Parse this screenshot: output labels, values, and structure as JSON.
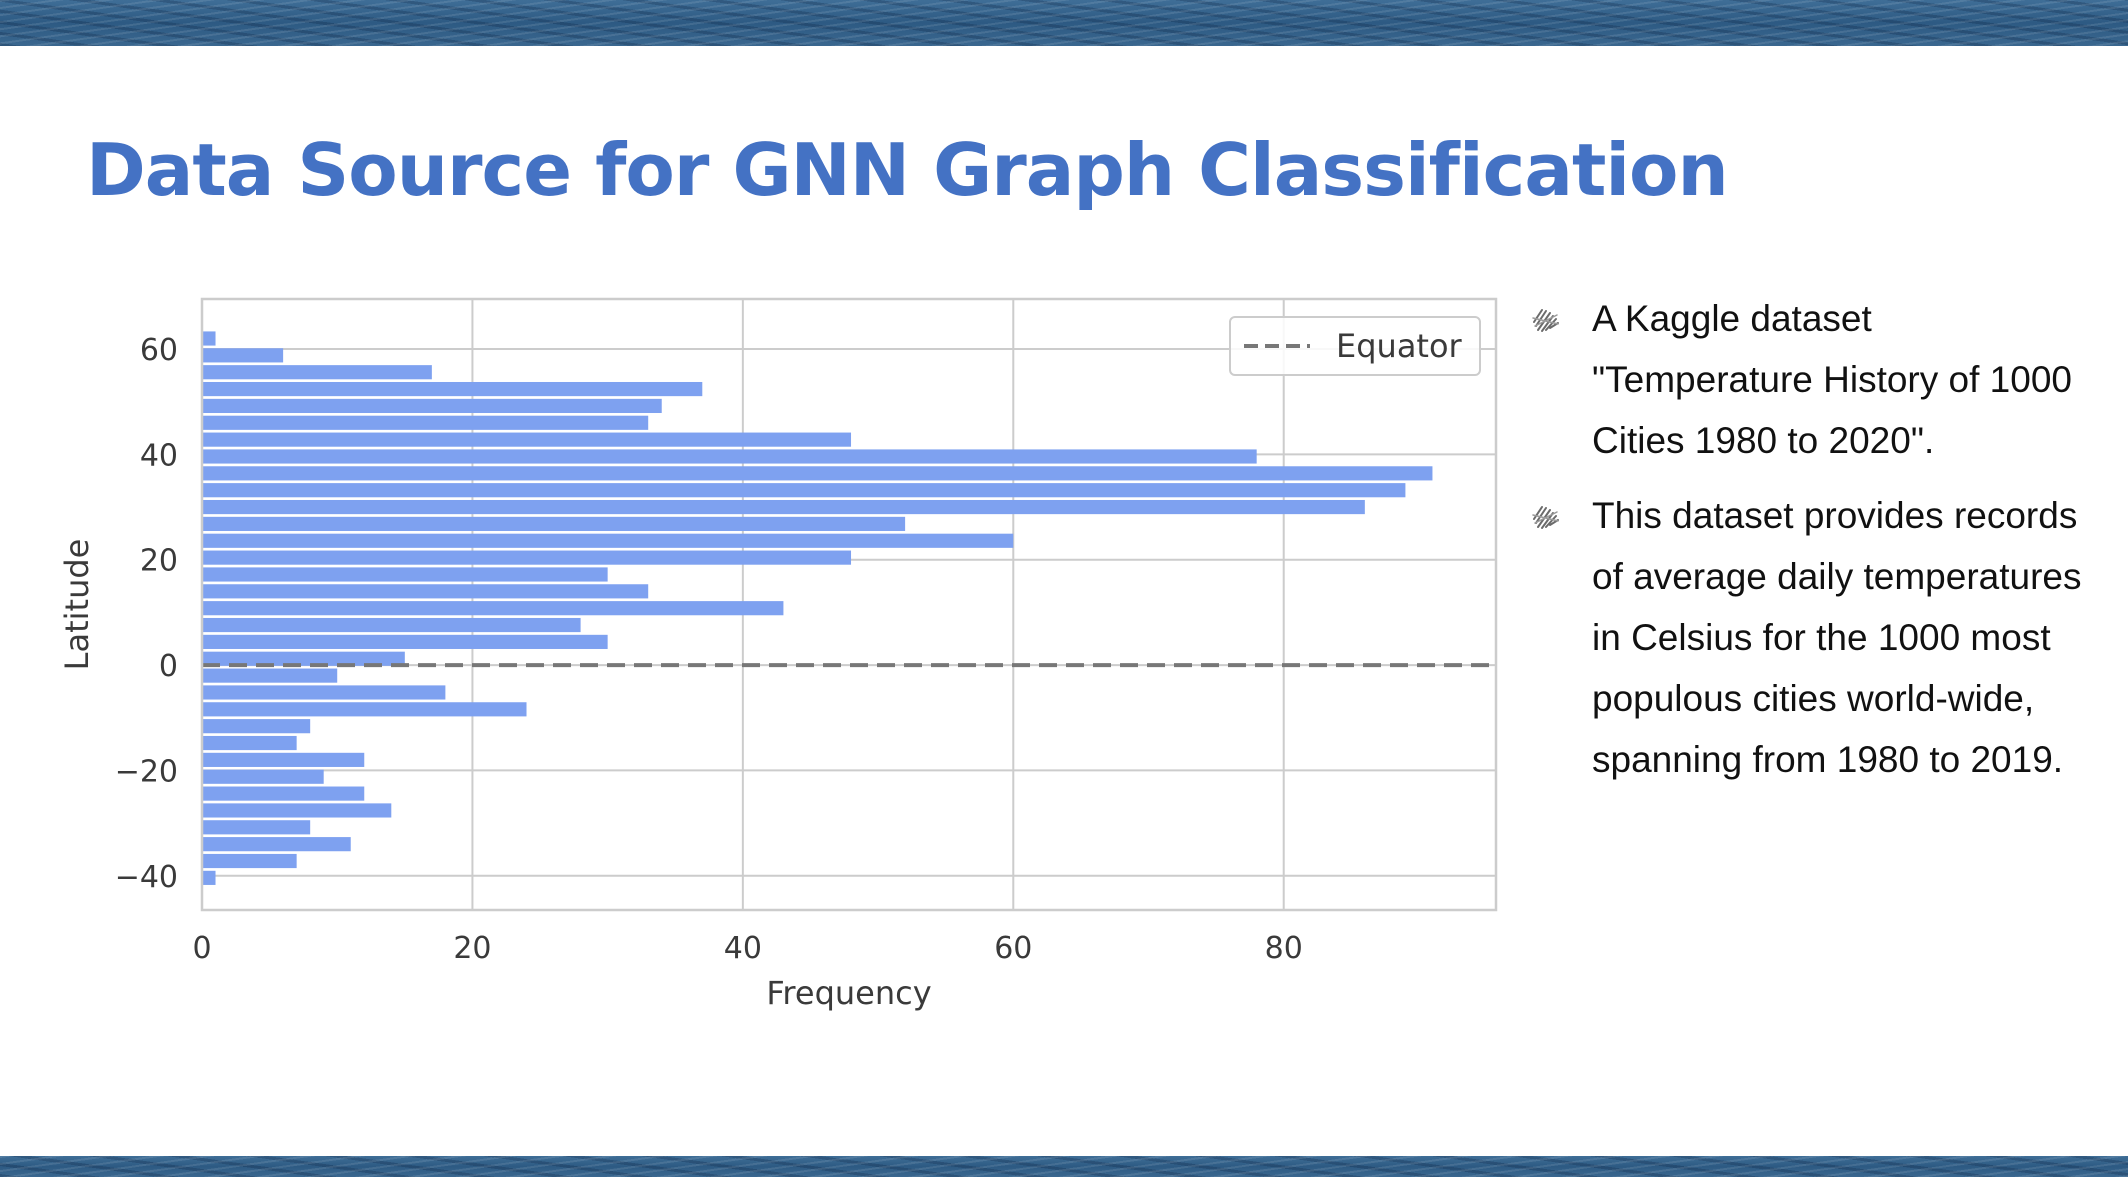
{
  "slide": {
    "title": "Data Source for GNN Graph Classification",
    "bullets": [
      "A Kaggle dataset \"Temperature History of 1000 Cities 1980 to 2020\".",
      "This dataset provides records of average daily temperatures in Celsius for the 1000 most populous cities world-wide, spanning from 1980 to 2019."
    ],
    "bullet_icon": "scribble-bullet-icon"
  },
  "colors": {
    "title": "#4472c4",
    "bars": "#7ea1f0",
    "equator_line": "#777777",
    "grid": "#cccccc"
  },
  "chart_data": {
    "type": "bar",
    "orientation": "horizontal",
    "xlabel": "Frequency",
    "ylabel": "Latitude",
    "xlim": [
      0,
      95.7
    ],
    "ylim": [
      -46.5,
      69.5
    ],
    "xticks": [
      0,
      20,
      40,
      60,
      80
    ],
    "yticks": [
      -40,
      -20,
      0,
      20,
      40,
      60
    ],
    "grid": true,
    "legend": {
      "entries": [
        "Equator"
      ],
      "placement": "top-right",
      "line_style": "dashed"
    },
    "reference_lines": [
      {
        "name": "Equator",
        "y": 0
      }
    ],
    "bin_width": 3.22,
    "bins": [
      {
        "latitude": -40.4,
        "frequency": 1
      },
      {
        "latitude": -37.2,
        "frequency": 7
      },
      {
        "latitude": -34.0,
        "frequency": 11
      },
      {
        "latitude": -30.8,
        "frequency": 8
      },
      {
        "latitude": -27.6,
        "frequency": 14
      },
      {
        "latitude": -24.4,
        "frequency": 12
      },
      {
        "latitude": -21.2,
        "frequency": 9
      },
      {
        "latitude": -18.0,
        "frequency": 12
      },
      {
        "latitude": -14.8,
        "frequency": 7
      },
      {
        "latitude": -11.6,
        "frequency": 8
      },
      {
        "latitude": -8.4,
        "frequency": 24
      },
      {
        "latitude": -5.2,
        "frequency": 18
      },
      {
        "latitude": -2.0,
        "frequency": 10
      },
      {
        "latitude": 1.2,
        "frequency": 15
      },
      {
        "latitude": 4.4,
        "frequency": 30
      },
      {
        "latitude": 7.6,
        "frequency": 28
      },
      {
        "latitude": 10.8,
        "frequency": 43
      },
      {
        "latitude": 14.0,
        "frequency": 33
      },
      {
        "latitude": 17.2,
        "frequency": 30
      },
      {
        "latitude": 20.4,
        "frequency": 48
      },
      {
        "latitude": 23.6,
        "frequency": 60
      },
      {
        "latitude": 26.8,
        "frequency": 52
      },
      {
        "latitude": 30.0,
        "frequency": 86
      },
      {
        "latitude": 33.2,
        "frequency": 89
      },
      {
        "latitude": 36.4,
        "frequency": 91
      },
      {
        "latitude": 39.6,
        "frequency": 78
      },
      {
        "latitude": 42.8,
        "frequency": 48
      },
      {
        "latitude": 46.0,
        "frequency": 33
      },
      {
        "latitude": 49.2,
        "frequency": 34
      },
      {
        "latitude": 52.4,
        "frequency": 37
      },
      {
        "latitude": 55.6,
        "frequency": 17
      },
      {
        "latitude": 58.8,
        "frequency": 6
      },
      {
        "latitude": 62.0,
        "frequency": 1
      }
    ]
  }
}
